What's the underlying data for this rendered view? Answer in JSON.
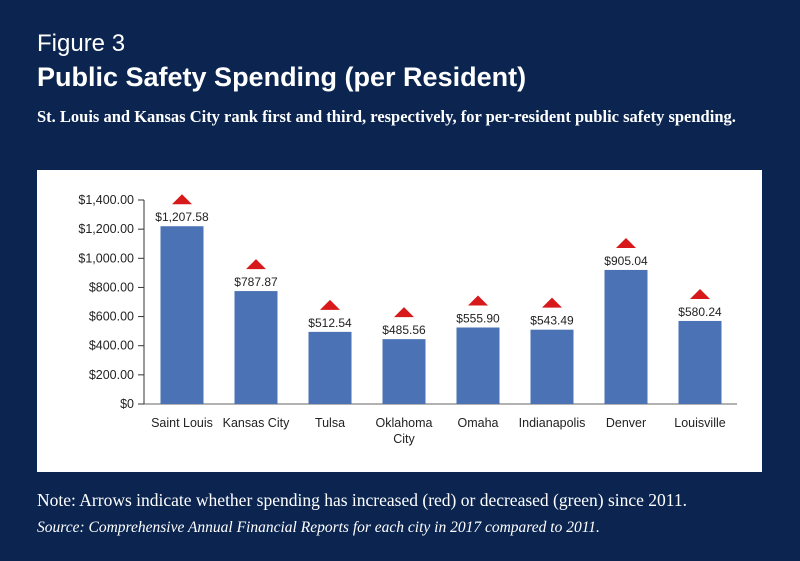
{
  "figure": {
    "label": "Figure 3",
    "title": "Public Safety Spending (per Resident)",
    "subtitle": "St. Louis and Kansas City rank first and third, respectively, for per-resident public safety spending.",
    "note": "Note: Arrows indicate whether spending has increased (red) or decreased (green) since 2011.",
    "source": "Source: Comprehensive Annual Financial Reports for each city in 2017 compared to 2011."
  },
  "colors": {
    "background": "#0b2550",
    "bar": "#4a72b5",
    "increase_arrow": "#d7191c",
    "decrease_arrow": "#2e9b3a"
  },
  "chart_data": {
    "type": "bar",
    "title": "Public Safety Spending (per Resident)",
    "xlabel": "",
    "ylabel": "",
    "ylim": [
      0,
      1400
    ],
    "yticks": [
      0,
      200,
      400,
      600,
      800,
      1000,
      1200,
      1400
    ],
    "ytick_labels": [
      "$0",
      "$200.00",
      "$400.00",
      "$600.00",
      "$800.00",
      "$1,000.00",
      "$1,200.00",
      "$1,400.00"
    ],
    "categories": [
      [
        "Saint Louis"
      ],
      [
        "Kansas City"
      ],
      [
        "Tulsa"
      ],
      [
        "Oklahoma",
        "City"
      ],
      [
        "Omaha"
      ],
      [
        "Indianapolis"
      ],
      [
        "Denver"
      ],
      [
        "Louisville"
      ]
    ],
    "values": [
      1207.58,
      787.87,
      512.54,
      485.56,
      555.9,
      543.49,
      905.04,
      580.24
    ],
    "value_labels": [
      "$1,207.58",
      "$787.87",
      "$512.54",
      "$485.56",
      "$555.90",
      "$543.49",
      "$905.04",
      "$580.24"
    ],
    "bar_heights": [
      1220,
      775,
      495,
      445,
      525,
      510,
      920,
      570
    ],
    "arrows": [
      "increase",
      "increase",
      "increase",
      "increase",
      "increase",
      "increase",
      "increase",
      "increase"
    ],
    "grid": false,
    "legend": "none"
  }
}
